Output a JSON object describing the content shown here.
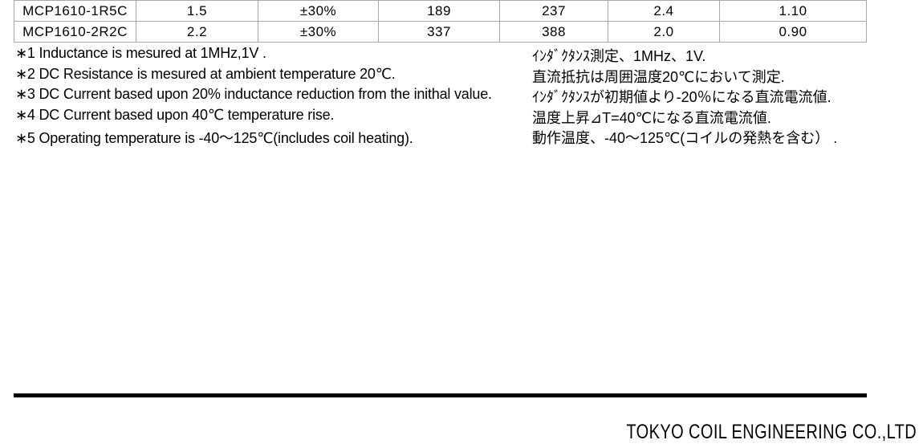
{
  "page": {
    "background_color": "#ffffff",
    "text_color": "#000000",
    "table_border_color": "#a8a8a8"
  },
  "table": {
    "rows": [
      {
        "cells": [
          "MCP1610-1R5C",
          "1.5",
          "±30%",
          "189",
          "237",
          "2.4",
          "1.10"
        ]
      },
      {
        "cells": [
          "MCP1610-2R2C",
          "2.2",
          "±30%",
          "337",
          "388",
          "2.0",
          "0.90"
        ]
      }
    ]
  },
  "notes": [
    {
      "en": "∗1 Inductance is mesured at 1MHz,1V .",
      "ja": "ｲﾝﾀﾞｸﾀﾝｽ測定、1MHz、1V."
    },
    {
      "en": "∗2 DC Resistance is mesured at ambient temperature 20℃.",
      "ja": "直流抵抗は周囲温度20℃において測定."
    },
    {
      "en": "∗3 DC Current based upon 20% inductance reduction from the inithal value.",
      "ja": "ｲﾝﾀﾞｸﾀﾝｽが初期値より-20％になる直流電流値."
    },
    {
      "en": "∗4 DC Current based upon 40℃ temperature rise.",
      "ja": "温度上昇⊿T=40℃になる直流電流値."
    },
    {
      "en": "∗5 Operating temperature is -40～125℃(includes coil heating).",
      "ja": "動作温度、-40～125℃(コイルの発熱を含む） ."
    }
  ],
  "footer": {
    "company_name": "TOKYO COIL ENGINEERING CO.,LTD"
  }
}
